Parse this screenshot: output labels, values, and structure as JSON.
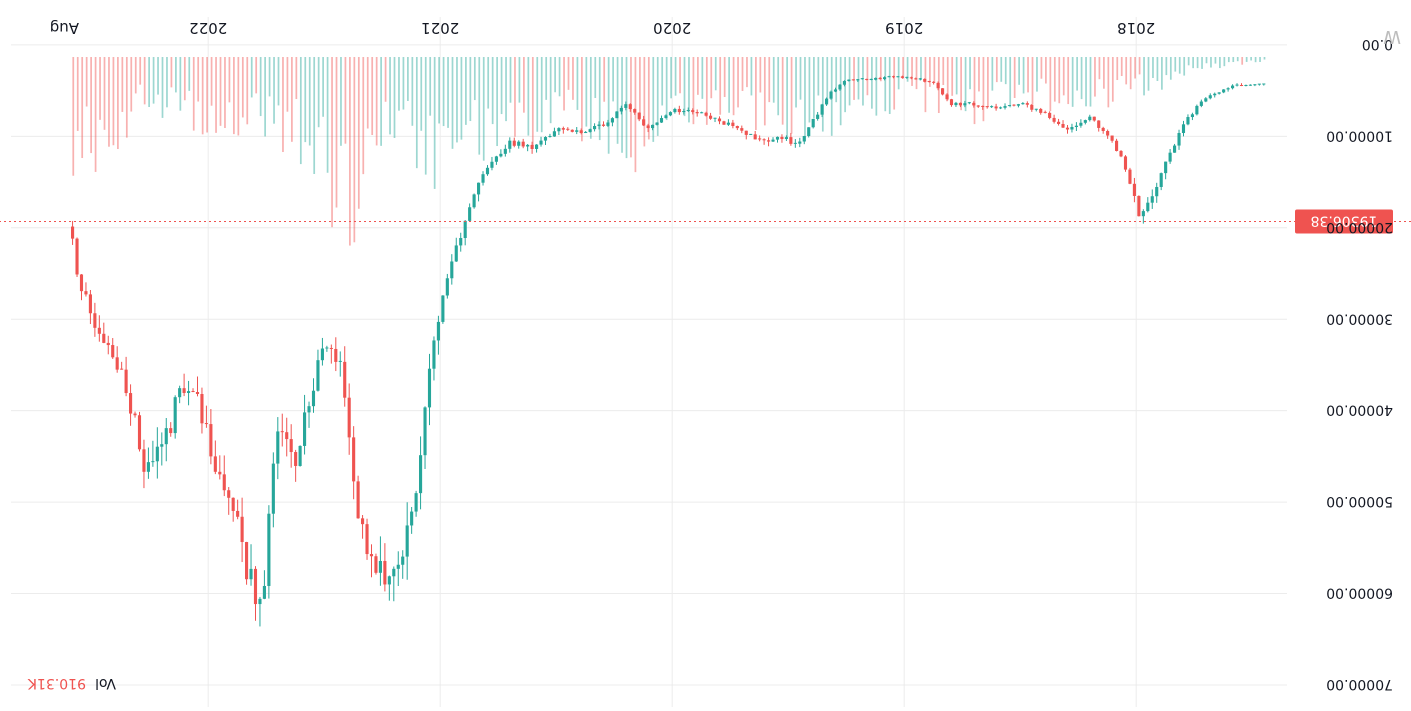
{
  "chart_data": {
    "type": "candlestick",
    "orientation": "rotated-180",
    "x_tick_labels": [
      "2018",
      "2019",
      "2020",
      "2021",
      "2022",
      "Aug"
    ],
    "y_tick_labels": [
      "0.00",
      "10000.00",
      "20000.00",
      "30000.00",
      "40000.00",
      "50000.00",
      "60000.00",
      "70000.00"
    ],
    "y_ticks": [
      0,
      10000,
      20000,
      30000,
      40000,
      50000,
      60000,
      70000
    ],
    "ylim": [
      -3600,
      70000
    ],
    "x_range": [
      2017.35,
      2022.85
    ],
    "current_price": 19306.38,
    "current_price_label": "19306.38",
    "volume_label": "Vol",
    "volume_value": "910.31K",
    "watermark": "W",
    "colors": {
      "up": "#26a69a",
      "down": "#ef5350",
      "grid": "#ececec",
      "axis_text": "#131722",
      "price_line": "#ef5350"
    },
    "price_series": [
      {
        "x": 2017.45,
        "y": 4300
      },
      {
        "x": 2017.58,
        "y": 4500
      },
      {
        "x": 2017.7,
        "y": 5800
      },
      {
        "x": 2017.78,
        "y": 8000
      },
      {
        "x": 2017.85,
        "y": 11500
      },
      {
        "x": 2017.92,
        "y": 16000
      },
      {
        "x": 2017.98,
        "y": 19300
      },
      {
        "x": 2018.04,
        "y": 14000
      },
      {
        "x": 2018.1,
        "y": 10500
      },
      {
        "x": 2018.2,
        "y": 8000
      },
      {
        "x": 2018.3,
        "y": 9300
      },
      {
        "x": 2018.4,
        "y": 7500
      },
      {
        "x": 2018.5,
        "y": 6300
      },
      {
        "x": 2018.6,
        "y": 7000
      },
      {
        "x": 2018.7,
        "y": 6500
      },
      {
        "x": 2018.8,
        "y": 6400
      },
      {
        "x": 2018.87,
        "y": 4200
      },
      {
        "x": 2018.95,
        "y": 3700
      },
      {
        "x": 2019.05,
        "y": 3500
      },
      {
        "x": 2019.15,
        "y": 3800
      },
      {
        "x": 2019.25,
        "y": 3900
      },
      {
        "x": 2019.32,
        "y": 5200
      },
      {
        "x": 2019.38,
        "y": 7800
      },
      {
        "x": 2019.46,
        "y": 11000
      },
      {
        "x": 2019.52,
        "y": 10000
      },
      {
        "x": 2019.6,
        "y": 10800
      },
      {
        "x": 2019.7,
        "y": 9500
      },
      {
        "x": 2019.8,
        "y": 8200
      },
      {
        "x": 2019.9,
        "y": 7200
      },
      {
        "x": 2020.0,
        "y": 7200
      },
      {
        "x": 2020.1,
        "y": 9300
      },
      {
        "x": 2020.2,
        "y": 6400
      },
      {
        "x": 2020.3,
        "y": 8800
      },
      {
        "x": 2020.4,
        "y": 9600
      },
      {
        "x": 2020.5,
        "y": 9200
      },
      {
        "x": 2020.6,
        "y": 11200
      },
      {
        "x": 2020.7,
        "y": 10700
      },
      {
        "x": 2020.8,
        "y": 13200
      },
      {
        "x": 2020.87,
        "y": 17000
      },
      {
        "x": 2020.94,
        "y": 23000
      },
      {
        "x": 2021.0,
        "y": 29000
      },
      {
        "x": 2021.05,
        "y": 36000
      },
      {
        "x": 2021.1,
        "y": 48000
      },
      {
        "x": 2021.17,
        "y": 57000
      },
      {
        "x": 2021.25,
        "y": 58000
      },
      {
        "x": 2021.3,
        "y": 56000
      },
      {
        "x": 2021.37,
        "y": 49000
      },
      {
        "x": 2021.42,
        "y": 35500
      },
      {
        "x": 2021.5,
        "y": 33500
      },
      {
        "x": 2021.58,
        "y": 39500
      },
      {
        "x": 2021.63,
        "y": 46000
      },
      {
        "x": 2021.7,
        "y": 41500
      },
      {
        "x": 2021.77,
        "y": 61300
      },
      {
        "x": 2021.84,
        "y": 57000
      },
      {
        "x": 2021.9,
        "y": 48500
      },
      {
        "x": 2021.97,
        "y": 46300
      },
      {
        "x": 2022.05,
        "y": 38000
      },
      {
        "x": 2022.12,
        "y": 37800
      },
      {
        "x": 2022.2,
        "y": 44500
      },
      {
        "x": 2022.28,
        "y": 45500
      },
      {
        "x": 2022.35,
        "y": 37700
      },
      {
        "x": 2022.45,
        "y": 31700
      },
      {
        "x": 2022.5,
        "y": 30000
      },
      {
        "x": 2022.56,
        "y": 25500
      },
      {
        "x": 2022.6,
        "y": 19300
      }
    ],
    "volume_series": [
      {
        "x": 2017.45,
        "v": 30
      },
      {
        "x": 2017.6,
        "v": 60
      },
      {
        "x": 2017.8,
        "v": 120
      },
      {
        "x": 2017.95,
        "v": 260
      },
      {
        "x": 2018.1,
        "v": 330
      },
      {
        "x": 2018.3,
        "v": 330
      },
      {
        "x": 2018.5,
        "v": 360
      },
      {
        "x": 2018.7,
        "v": 430
      },
      {
        "x": 2018.9,
        "v": 350
      },
      {
        "x": 2019.1,
        "v": 360
      },
      {
        "x": 2019.3,
        "v": 530
      },
      {
        "x": 2019.45,
        "v": 620
      },
      {
        "x": 2019.6,
        "v": 520
      },
      {
        "x": 2019.8,
        "v": 420
      },
      {
        "x": 2020.0,
        "v": 520
      },
      {
        "x": 2020.15,
        "v": 850
      },
      {
        "x": 2020.3,
        "v": 600
      },
      {
        "x": 2020.5,
        "v": 520
      },
      {
        "x": 2020.7,
        "v": 620
      },
      {
        "x": 2020.85,
        "v": 690
      },
      {
        "x": 2021.0,
        "v": 860
      },
      {
        "x": 2021.15,
        "v": 710
      },
      {
        "x": 2021.3,
        "v": 560
      },
      {
        "x": 2021.4,
        "v": 1450
      },
      {
        "x": 2021.55,
        "v": 760
      },
      {
        "x": 2021.7,
        "v": 590
      },
      {
        "x": 2021.85,
        "v": 520
      },
      {
        "x": 2022.0,
        "v": 560
      },
      {
        "x": 2022.15,
        "v": 460
      },
      {
        "x": 2022.3,
        "v": 420
      },
      {
        "x": 2022.45,
        "v": 720
      },
      {
        "x": 2022.55,
        "v": 820
      },
      {
        "x": 2022.6,
        "v": 910
      }
    ]
  }
}
